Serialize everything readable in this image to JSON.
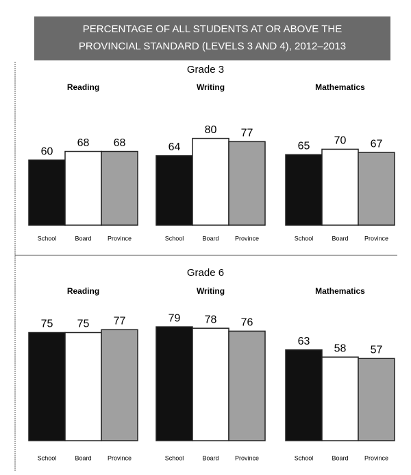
{
  "title": [
    "PERCENTAGE OF ALL STUDENTS AT OR ABOVE THE",
    "PROVINCIAL STANDARD (LEVELS 3 AND 4), 2012–2013"
  ],
  "sections": [
    {
      "label": "Grade 3"
    },
    {
      "label": "Grade 6"
    }
  ],
  "chart_data": [
    {
      "type": "bar",
      "title": "Reading",
      "categories": [
        "School",
        "Board",
        "Province"
      ],
      "values": [
        60,
        68,
        68
      ],
      "colors": [
        "#111111",
        "#ffffff",
        "#a0a0a0"
      ]
    },
    {
      "type": "bar",
      "title": "Writing",
      "categories": [
        "School",
        "Board",
        "Province"
      ],
      "values": [
        64,
        80,
        77
      ],
      "colors": [
        "#111111",
        "#ffffff",
        "#a0a0a0"
      ]
    },
    {
      "type": "bar",
      "title": "Mathematics",
      "categories": [
        "School",
        "Board",
        "Province"
      ],
      "values": [
        65,
        70,
        67
      ],
      "colors": [
        "#111111",
        "#ffffff",
        "#a0a0a0"
      ]
    },
    {
      "type": "bar",
      "title": "Reading",
      "categories": [
        "School",
        "Board",
        "Province"
      ],
      "values": [
        75,
        75,
        77
      ],
      "colors": [
        "#111111",
        "#ffffff",
        "#a0a0a0"
      ]
    },
    {
      "type": "bar",
      "title": "Writing",
      "categories": [
        "School",
        "Board",
        "Province"
      ],
      "values": [
        79,
        78,
        76
      ],
      "colors": [
        "#111111",
        "#ffffff",
        "#a0a0a0"
      ]
    },
    {
      "type": "bar",
      "title": "Mathematics",
      "categories": [
        "School",
        "Board",
        "Province"
      ],
      "values": [
        63,
        58,
        57
      ],
      "colors": [
        "#111111",
        "#ffffff",
        "#a0a0a0"
      ]
    }
  ]
}
